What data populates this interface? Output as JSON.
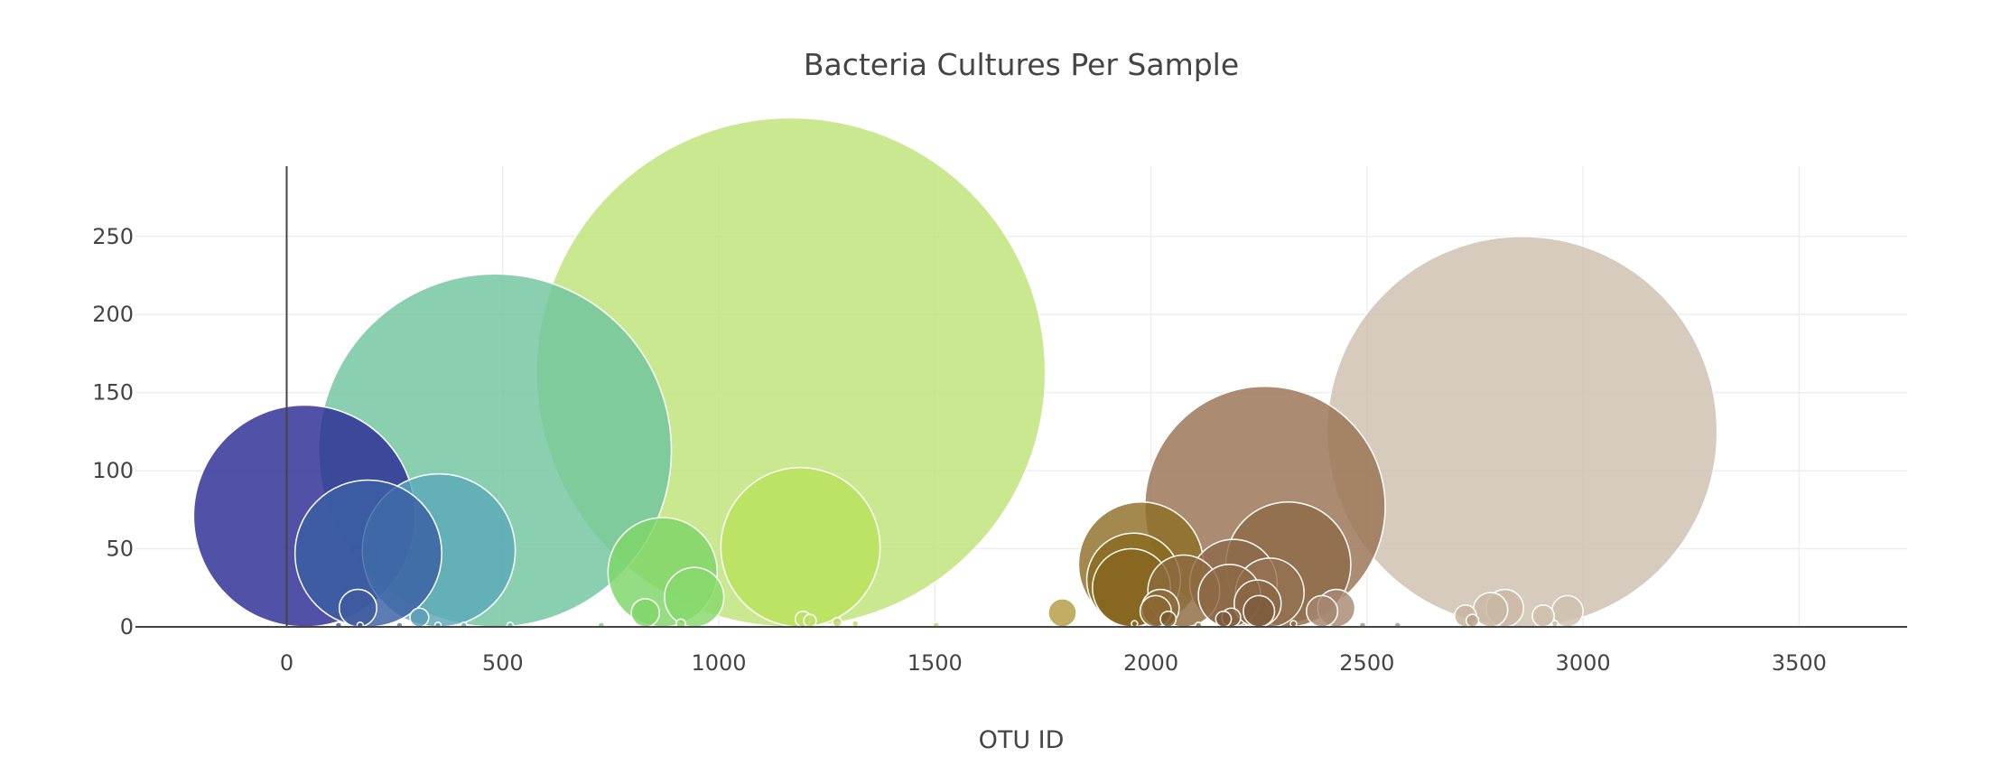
{
  "chart_data": {
    "type": "scatter",
    "title": "Bacteria Cultures Per Sample",
    "xlabel": "OTU ID",
    "ylabel": "",
    "xlim": [
      -350,
      3750
    ],
    "ylim": [
      0,
      295
    ],
    "xticks": [
      0,
      500,
      1000,
      1500,
      2000,
      2500,
      3000,
      3500
    ],
    "yticks": [
      0,
      50,
      100,
      150,
      200,
      250
    ],
    "grid": true,
    "legend": "none",
    "points": [
      {
        "x": 41,
        "y": 71,
        "size": 71,
        "color": "#2b2b95"
      },
      {
        "x": 189,
        "y": 47,
        "size": 47,
        "color": "#3a5fa3"
      },
      {
        "x": 165,
        "y": 12,
        "size": 12,
        "color": "#3f5c9e"
      },
      {
        "x": 352,
        "y": 49,
        "size": 49,
        "color": "#5aa8b8"
      },
      {
        "x": 307,
        "y": 6,
        "size": 6,
        "color": "#5a9cb4"
      },
      {
        "x": 482,
        "y": 113,
        "size": 113,
        "color": "#6fc49f"
      },
      {
        "x": 870,
        "y": 35,
        "size": 35,
        "color": "#7ed666"
      },
      {
        "x": 943,
        "y": 19,
        "size": 19,
        "color": "#86d96a"
      },
      {
        "x": 830,
        "y": 9,
        "size": 9,
        "color": "#80d668"
      },
      {
        "x": 1167,
        "y": 163,
        "size": 163,
        "color": "#bde376"
      },
      {
        "x": 1189,
        "y": 51,
        "size": 51,
        "color": "#b9e25a"
      },
      {
        "x": 1195,
        "y": 5,
        "size": 5,
        "color": "#bde06a"
      },
      {
        "x": 1211,
        "y": 4,
        "size": 4,
        "color": "#bde06a"
      },
      {
        "x": 1274,
        "y": 3,
        "size": 3,
        "color": "#c6d66a"
      },
      {
        "x": 1795,
        "y": 9,
        "size": 9,
        "color": "#b59b42"
      },
      {
        "x": 1977,
        "y": 40,
        "size": 40,
        "color": "#8f6f26"
      },
      {
        "x": 1960,
        "y": 30,
        "size": 30,
        "color": "#8a6a20"
      },
      {
        "x": 1955,
        "y": 25,
        "size": 25,
        "color": "#86661e"
      },
      {
        "x": 2076,
        "y": 23,
        "size": 23,
        "color": "#8d6a3e"
      },
      {
        "x": 2022,
        "y": 12,
        "size": 12,
        "color": "#8f6b3a"
      },
      {
        "x": 2011,
        "y": 10,
        "size": 10,
        "color": "#8a6630"
      },
      {
        "x": 2040,
        "y": 5,
        "size": 5,
        "color": "#7c5a2c"
      },
      {
        "x": 2264,
        "y": 77,
        "size": 77,
        "color": "#987354"
      },
      {
        "x": 2318,
        "y": 40,
        "size": 40,
        "color": "#8e6a46"
      },
      {
        "x": 2191,
        "y": 28,
        "size": 28,
        "color": "#8e6a4a"
      },
      {
        "x": 2275,
        "y": 22,
        "size": 22,
        "color": "#957352"
      },
      {
        "x": 2182,
        "y": 20,
        "size": 20,
        "color": "#8c6946"
      },
      {
        "x": 2247,
        "y": 15,
        "size": 15,
        "color": "#8a6644"
      },
      {
        "x": 2250,
        "y": 10,
        "size": 10,
        "color": "#7e5c3c"
      },
      {
        "x": 2186,
        "y": 6,
        "size": 6,
        "color": "#84613e"
      },
      {
        "x": 2168,
        "y": 5,
        "size": 5,
        "color": "#7a5838"
      },
      {
        "x": 2429,
        "y": 12,
        "size": 12,
        "color": "#a88a74"
      },
      {
        "x": 2396,
        "y": 10,
        "size": 10,
        "color": "#a4866e"
      },
      {
        "x": 2859,
        "y": 125,
        "size": 125,
        "color": "#cdbfad"
      },
      {
        "x": 2819,
        "y": 12,
        "size": 12,
        "color": "#c9b8a4"
      },
      {
        "x": 2786,
        "y": 11,
        "size": 11,
        "color": "#c8b7a3"
      },
      {
        "x": 2728,
        "y": 7,
        "size": 7,
        "color": "#c6b39d"
      },
      {
        "x": 2964,
        "y": 10,
        "size": 10,
        "color": "#d0c1af"
      },
      {
        "x": 2908,
        "y": 7,
        "size": 7,
        "color": "#cfc0ad"
      },
      {
        "x": 2744,
        "y": 4,
        "size": 4,
        "color": "#b8a28a"
      },
      {
        "x": 120,
        "y": 1,
        "size": 2,
        "color": "#3a4f9c"
      },
      {
        "x": 170,
        "y": 1,
        "size": 2,
        "color": "#3a5aa0"
      },
      {
        "x": 261,
        "y": 1,
        "size": 2,
        "color": "#4a7aae"
      },
      {
        "x": 350,
        "y": 1,
        "size": 2,
        "color": "#5aa0b4"
      },
      {
        "x": 410,
        "y": 1,
        "size": 2,
        "color": "#60b0b0"
      },
      {
        "x": 517,
        "y": 1,
        "size": 2,
        "color": "#6ec0a0"
      },
      {
        "x": 728,
        "y": 1,
        "size": 2,
        "color": "#78cc88"
      },
      {
        "x": 912,
        "y": 2,
        "size": 3,
        "color": "#86d86c"
      },
      {
        "x": 1316,
        "y": 2,
        "size": 2,
        "color": "#c4d866"
      },
      {
        "x": 1503,
        "y": 1,
        "size": 2,
        "color": "#c8d062"
      },
      {
        "x": 1962,
        "y": 2,
        "size": 2,
        "color": "#8e6e26"
      },
      {
        "x": 2110,
        "y": 1,
        "size": 2,
        "color": "#8a6838"
      },
      {
        "x": 2330,
        "y": 2,
        "size": 2,
        "color": "#8e6a46"
      },
      {
        "x": 2490,
        "y": 1,
        "size": 2,
        "color": "#ac907a"
      },
      {
        "x": 2571,
        "y": 1,
        "size": 2,
        "color": "#b09680"
      },
      {
        "x": 2935,
        "y": 2,
        "size": 2,
        "color": "#cbbaa6"
      }
    ]
  }
}
